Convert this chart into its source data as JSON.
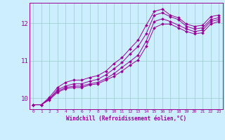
{
  "xlabel": "Windchill (Refroidissement éolien,°C)",
  "background_color": "#cceeff",
  "line_color": "#990099",
  "grid_color": "#99cccc",
  "xlim": [
    -0.5,
    23.5
  ],
  "ylim": [
    9.7,
    12.55
  ],
  "xticks": [
    0,
    1,
    2,
    3,
    4,
    5,
    6,
    7,
    8,
    9,
    10,
    11,
    12,
    13,
    14,
    15,
    16,
    17,
    18,
    19,
    20,
    21,
    22,
    23
  ],
  "yticks": [
    10,
    11,
    12
  ],
  "series": [
    [
      9.82,
      9.82,
      9.98,
      10.18,
      10.28,
      10.32,
      10.32,
      10.38,
      10.42,
      10.52,
      10.65,
      10.82,
      10.98,
      11.15,
      11.52,
      12.05,
      12.12,
      12.05,
      11.95,
      11.85,
      11.78,
      11.82,
      12.05,
      12.1
    ],
    [
      9.82,
      9.82,
      9.98,
      10.22,
      10.32,
      10.38,
      10.38,
      10.45,
      10.5,
      10.62,
      10.78,
      10.95,
      11.18,
      11.38,
      11.72,
      12.22,
      12.28,
      12.18,
      12.1,
      11.92,
      11.85,
      11.88,
      12.1,
      12.15
    ],
    [
      9.82,
      9.82,
      10.02,
      10.28,
      10.42,
      10.48,
      10.48,
      10.55,
      10.6,
      10.72,
      10.92,
      11.08,
      11.32,
      11.55,
      11.95,
      12.32,
      12.38,
      12.22,
      12.15,
      11.98,
      11.92,
      11.95,
      12.18,
      12.22
    ],
    [
      9.82,
      9.82,
      9.95,
      10.15,
      10.25,
      10.28,
      10.28,
      10.35,
      10.38,
      10.48,
      10.58,
      10.72,
      10.88,
      11.02,
      11.38,
      11.88,
      11.98,
      11.98,
      11.88,
      11.78,
      11.72,
      11.75,
      11.98,
      12.05
    ]
  ]
}
